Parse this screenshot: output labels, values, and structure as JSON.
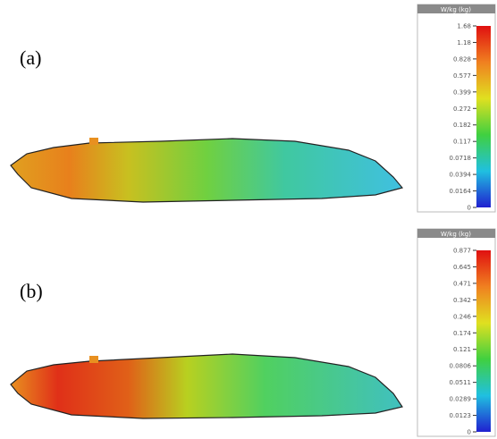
{
  "panels": [
    {
      "label": "(a)",
      "colorbar": {
        "title": "W/kg (kg)",
        "ticks": [
          "1.68",
          "1.18",
          "0.828",
          "0.577",
          "0.399",
          "0.272",
          "0.182",
          "0.117",
          "0.0718",
          "0.0394",
          "0.0164",
          "0"
        ]
      }
    },
    {
      "label": "(b)",
      "colorbar": {
        "title": "W/kg (kg)",
        "ticks": [
          "0.877",
          "0.645",
          "0.471",
          "0.342",
          "0.246",
          "0.174",
          "0.121",
          "0.0806",
          "0.0511",
          "0.0289",
          "0.0123",
          "0"
        ]
      }
    }
  ]
}
